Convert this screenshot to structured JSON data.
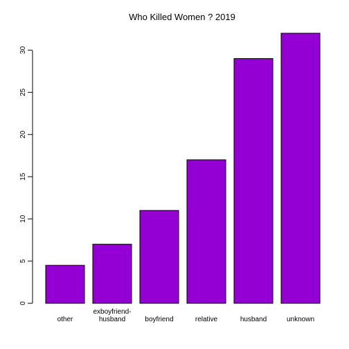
{
  "chart_data": {
    "type": "bar",
    "title": "Who Killed Women ? 2019",
    "xlabel": "",
    "ylabel": "",
    "categories": [
      "other",
      "exboyfriend-\nhusband",
      "boyfriend",
      "relative",
      "husband",
      "unknown"
    ],
    "values": [
      4.5,
      7,
      11,
      17,
      29,
      32
    ],
    "ylim": [
      0,
      32
    ],
    "yticks": [
      0,
      5,
      10,
      15,
      20,
      25,
      30
    ],
    "bar_color": "#9400D3",
    "grid": false,
    "legend": "none"
  }
}
